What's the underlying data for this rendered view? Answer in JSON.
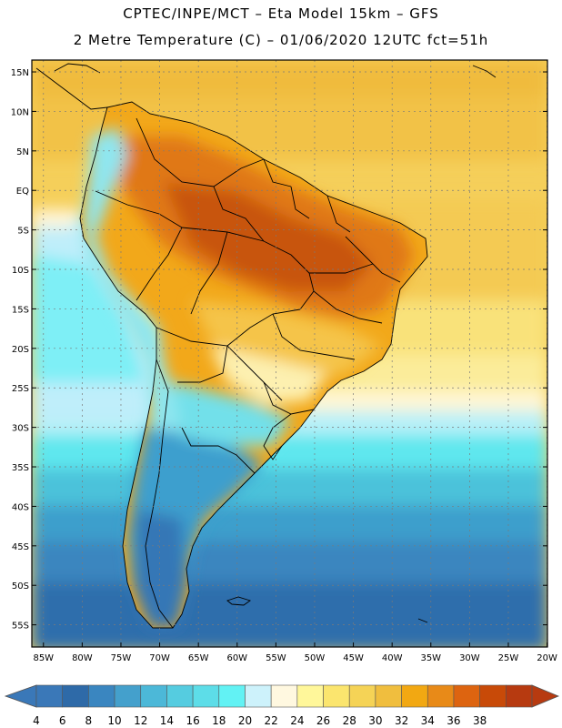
{
  "header": {
    "line1": "CPTEC/INPE/MCT –  Eta Model 15km – GFS",
    "line2": "2 Metre Temperature (C) – 01/06/2020 12UTC fct=51h"
  },
  "map": {
    "lat_labels": [
      "15N",
      "10N",
      "5N",
      "EQ",
      "5S",
      "10S",
      "15S",
      "20S",
      "25S",
      "30S",
      "35S",
      "40S",
      "45S",
      "50S",
      "55S"
    ],
    "lon_labels": [
      "85W",
      "80W",
      "75W",
      "70W",
      "65W",
      "60W",
      "55W",
      "50W",
      "45W",
      "40W",
      "35W",
      "30W",
      "25W",
      "20W"
    ],
    "grid": true
  },
  "colorbar": {
    "labels": [
      "4",
      "6",
      "8",
      "10",
      "12",
      "14",
      "16",
      "18",
      "20",
      "22",
      "24",
      "26",
      "28",
      "30",
      "32",
      "34",
      "36",
      "38"
    ],
    "colors": [
      "#3a78b8",
      "#2e6aa8",
      "#3a86c0",
      "#44a0cc",
      "#4cb8d8",
      "#55cce0",
      "#5ddde8",
      "#62f2f4",
      "#cdf2fb",
      "#fff8e0",
      "#fff79a",
      "#fbe56e",
      "#f5d356",
      "#f0be3e",
      "#f2a812",
      "#e88a18",
      "#dd6410",
      "#c84a08",
      "#b73a10"
    ]
  }
}
